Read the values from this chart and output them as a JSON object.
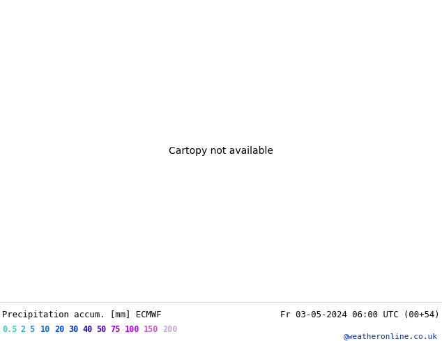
{
  "title_left": "Precipitation accum. [mm] ECMWF",
  "title_right": "Fr 03-05-2024 06:00 UTC (00+54)",
  "credit": "@weatheronline.co.uk",
  "legend_values": [
    "0.5",
    "2",
    "5",
    "10",
    "20",
    "30",
    "40",
    "50",
    "75",
    "100",
    "150",
    "200"
  ],
  "legend_text_colors": [
    "#33cccc",
    "#33aacc",
    "#2288cc",
    "#1166dd",
    "#0044dd",
    "#003399",
    "#220099",
    "#440099",
    "#8800cc",
    "#bb00dd",
    "#cc55cc",
    "#ccaacc"
  ],
  "pressure_color_red": "#dd0000",
  "pressure_color_blue": "#0000cc",
  "land_color_green": "#c8d8a0",
  "land_color_tan": "#e8e0d0",
  "sea_color": "#b8d4ee",
  "precip_levels": [
    0.5,
    2,
    5,
    10,
    20,
    30,
    40,
    50,
    75,
    100,
    150,
    200
  ],
  "precip_colors": [
    "#aaeeff",
    "#88ddff",
    "#55bbff",
    "#2299ff",
    "#1166ee",
    "#0044cc",
    "#0022aa",
    "#221188",
    "#5500aa",
    "#9900cc",
    "#ee00ff",
    "#ff88ff"
  ],
  "lon_min": -45,
  "lon_max": 50,
  "lat_min": 25,
  "lat_max": 75
}
